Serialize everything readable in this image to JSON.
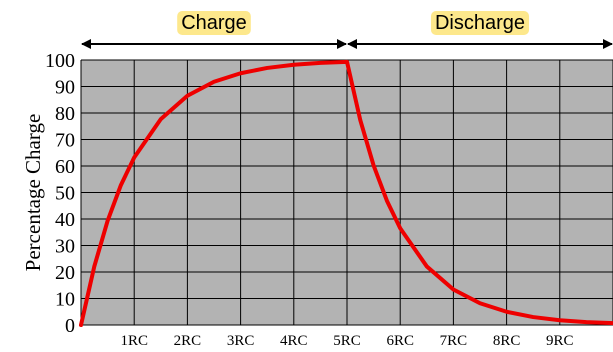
{
  "chart_data": {
    "type": "line",
    "title": "",
    "ylabel": "Percentage Charge",
    "xlabel": "",
    "xlim": [
      0,
      10
    ],
    "ylim": [
      0,
      100
    ],
    "yticks": [
      "0",
      "10",
      "20",
      "30",
      "40",
      "50",
      "60",
      "70",
      "80",
      "90",
      "100"
    ],
    "xtick_labels": [
      "1RC",
      "2RC",
      "3RC",
      "4RC",
      "5RC",
      "6RC",
      "7RC",
      "8RC",
      "9RC"
    ],
    "grid": true,
    "phases": [
      {
        "label": "Charge",
        "from": 0,
        "to": 5
      },
      {
        "label": "Discharge",
        "from": 5,
        "to": 10
      }
    ],
    "series": [
      {
        "color": "#ee0000",
        "x": [
          0,
          0.25,
          0.5,
          0.75,
          1,
          1.5,
          2,
          2.5,
          3,
          3.5,
          4,
          4.5,
          5,
          5.25,
          5.5,
          5.75,
          6,
          6.5,
          7,
          7.5,
          8,
          8.5,
          9,
          9.5,
          10
        ],
        "y": [
          0,
          22.1,
          39.3,
          52.8,
          63.2,
          77.7,
          86.5,
          91.8,
          95.0,
          97.0,
          98.2,
          98.9,
          99.3,
          77.3,
          60.2,
          46.9,
          36.5,
          22.1,
          13.4,
          8.2,
          5.0,
          3.0,
          1.8,
          1.1,
          0.7
        ]
      }
    ]
  }
}
